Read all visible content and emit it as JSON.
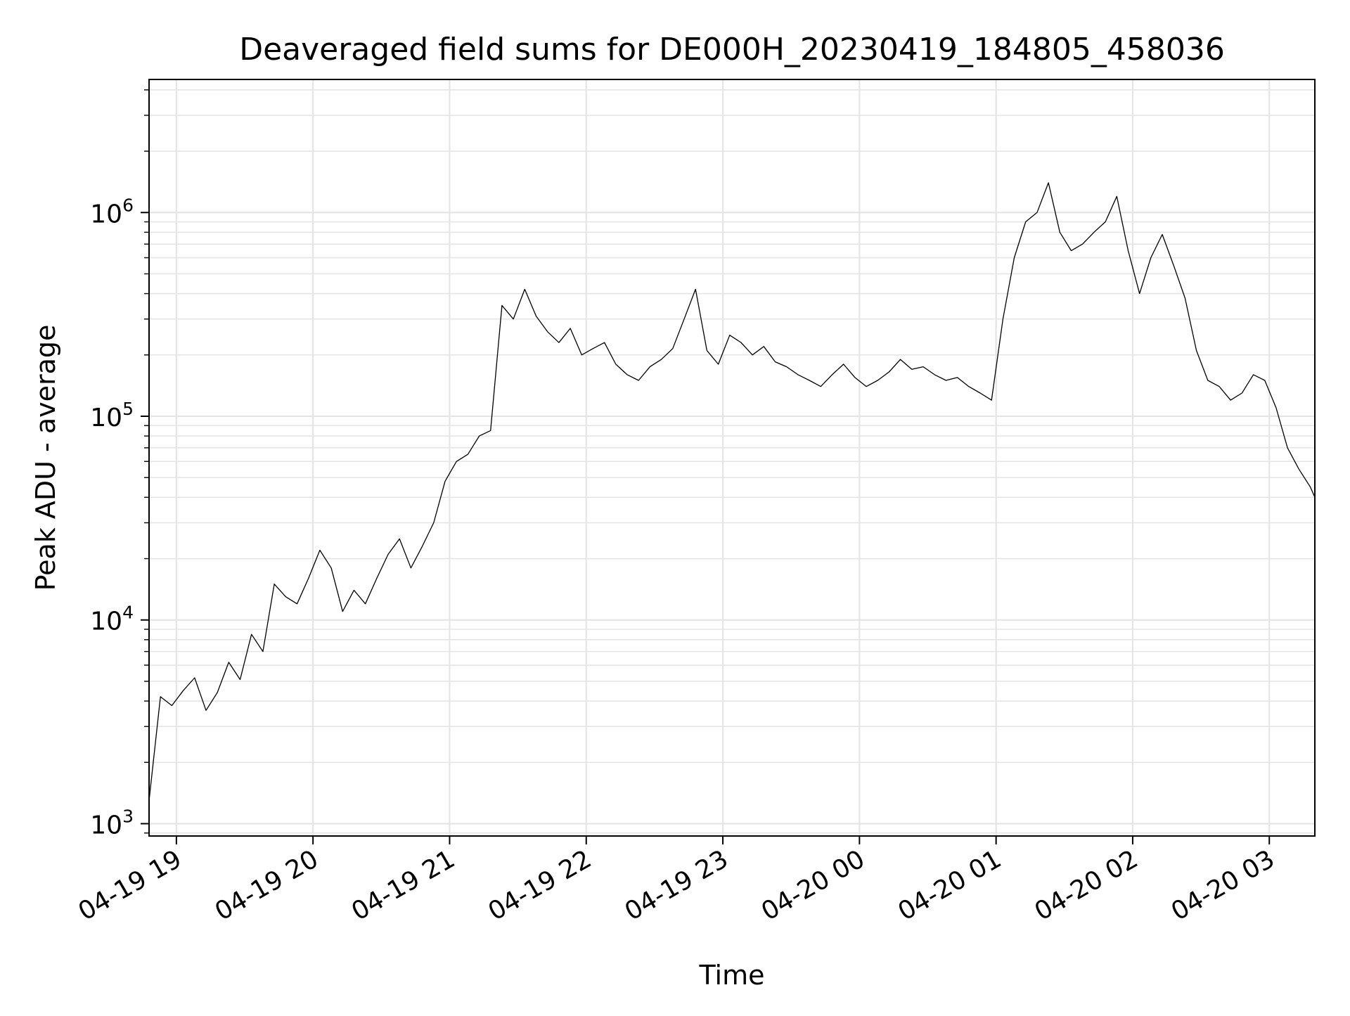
{
  "chart_data": {
    "type": "line",
    "title": "Deaveraged field sums for DE000H_20230419_184805_458036",
    "xlabel": "Time",
    "ylabel": "Peak ADU - average",
    "yscale": "log",
    "ylim": [
      870,
      4500000
    ],
    "xlim": [
      "04-19 18:48",
      "04-20 03:20"
    ],
    "grid": "major and minor",
    "line_color": "#000000",
    "grid_color": "#e5e5e5",
    "x_ticks": [
      {
        "label": "04-19 19",
        "hour": 19
      },
      {
        "label": "04-19 20",
        "hour": 20
      },
      {
        "label": "04-19 21",
        "hour": 21
      },
      {
        "label": "04-19 22",
        "hour": 22
      },
      {
        "label": "04-19 23",
        "hour": 23
      },
      {
        "label": "04-20 00",
        "hour": 24
      },
      {
        "label": "04-20 01",
        "hour": 25
      },
      {
        "label": "04-20 02",
        "hour": 26
      },
      {
        "label": "04-20 03",
        "hour": 27
      }
    ],
    "y_ticks": [
      {
        "base": "10",
        "exp": "3",
        "value": 1000
      },
      {
        "base": "10",
        "exp": "4",
        "value": 10000
      },
      {
        "base": "10",
        "exp": "5",
        "value": 100000
      },
      {
        "base": "10",
        "exp": "6",
        "value": 1000000
      }
    ],
    "series": [
      {
        "x": [
          "04-19 18:48",
          "04-19 18:53",
          "04-19 18:58",
          "04-19 19:03",
          "04-19 19:08",
          "04-19 19:13",
          "04-19 19:18",
          "04-19 19:23",
          "04-19 19:28",
          "04-19 19:33",
          "04-19 19:38",
          "04-19 19:43",
          "04-19 19:48",
          "04-19 19:53",
          "04-19 19:58",
          "04-19 20:03",
          "04-19 20:08",
          "04-19 20:13",
          "04-19 20:18",
          "04-19 20:23",
          "04-19 20:28",
          "04-19 20:33",
          "04-19 20:38",
          "04-19 20:43",
          "04-19 20:48",
          "04-19 20:53",
          "04-19 20:58",
          "04-19 21:03",
          "04-19 21:08",
          "04-19 21:13",
          "04-19 21:18",
          "04-19 21:23",
          "04-19 21:28",
          "04-19 21:33",
          "04-19 21:38",
          "04-19 21:43",
          "04-19 21:48",
          "04-19 21:53",
          "04-19 21:58",
          "04-19 22:03",
          "04-19 22:08",
          "04-19 22:13",
          "04-19 22:18",
          "04-19 22:23",
          "04-19 22:28",
          "04-19 22:33",
          "04-19 22:38",
          "04-19 22:43",
          "04-19 22:48",
          "04-19 22:53",
          "04-19 22:58",
          "04-19 23:03",
          "04-19 23:08",
          "04-19 23:13",
          "04-19 23:18",
          "04-19 23:23",
          "04-19 23:28",
          "04-19 23:33",
          "04-19 23:38",
          "04-19 23:43",
          "04-19 23:48",
          "04-19 23:53",
          "04-19 23:58",
          "04-20 00:03",
          "04-20 00:08",
          "04-20 00:13",
          "04-20 00:18",
          "04-20 00:23",
          "04-20 00:28",
          "04-20 00:33",
          "04-20 00:38",
          "04-20 00:43",
          "04-20 00:48",
          "04-20 00:53",
          "04-20 00:58",
          "04-20 01:03",
          "04-20 01:08",
          "04-20 01:13",
          "04-20 01:18",
          "04-20 01:23",
          "04-20 01:28",
          "04-20 01:33",
          "04-20 01:38",
          "04-20 01:43",
          "04-20 01:48",
          "04-20 01:53",
          "04-20 01:58",
          "04-20 02:03",
          "04-20 02:08",
          "04-20 02:13",
          "04-20 02:18",
          "04-20 02:23",
          "04-20 02:28",
          "04-20 02:33",
          "04-20 02:38",
          "04-20 02:43",
          "04-20 02:48",
          "04-20 02:53",
          "04-20 02:58",
          "04-20 03:03",
          "04-20 03:08",
          "04-20 03:13",
          "04-20 03:18",
          "04-20 03:20"
        ],
        "y": [
          1300,
          4200,
          3800,
          4500,
          5200,
          3600,
          4400,
          6200,
          5100,
          8500,
          7000,
          15000,
          13000,
          12000,
          16000,
          22000,
          18000,
          11000,
          14000,
          12000,
          16000,
          21000,
          25000,
          18000,
          23000,
          30000,
          48000,
          60000,
          65000,
          80000,
          85000,
          350000,
          300000,
          420000,
          310000,
          260000,
          230000,
          270000,
          200000,
          215000,
          230000,
          180000,
          160000,
          150000,
          175000,
          190000,
          215000,
          300000,
          420000,
          210000,
          180000,
          250000,
          230000,
          200000,
          220000,
          185000,
          175000,
          160000,
          150000,
          140000,
          160000,
          180000,
          155000,
          140000,
          150000,
          165000,
          190000,
          170000,
          175000,
          160000,
          150000,
          155000,
          140000,
          130000,
          120000,
          300000,
          600000,
          900000,
          1000000,
          1400000,
          800000,
          650000,
          700000,
          800000,
          900000,
          1200000,
          650000,
          400000,
          600000,
          780000,
          550000,
          380000,
          210000,
          150000,
          140000,
          120000,
          130000,
          160000,
          150000,
          110000,
          70000,
          55000,
          45000,
          40000
        ]
      }
    ]
  }
}
